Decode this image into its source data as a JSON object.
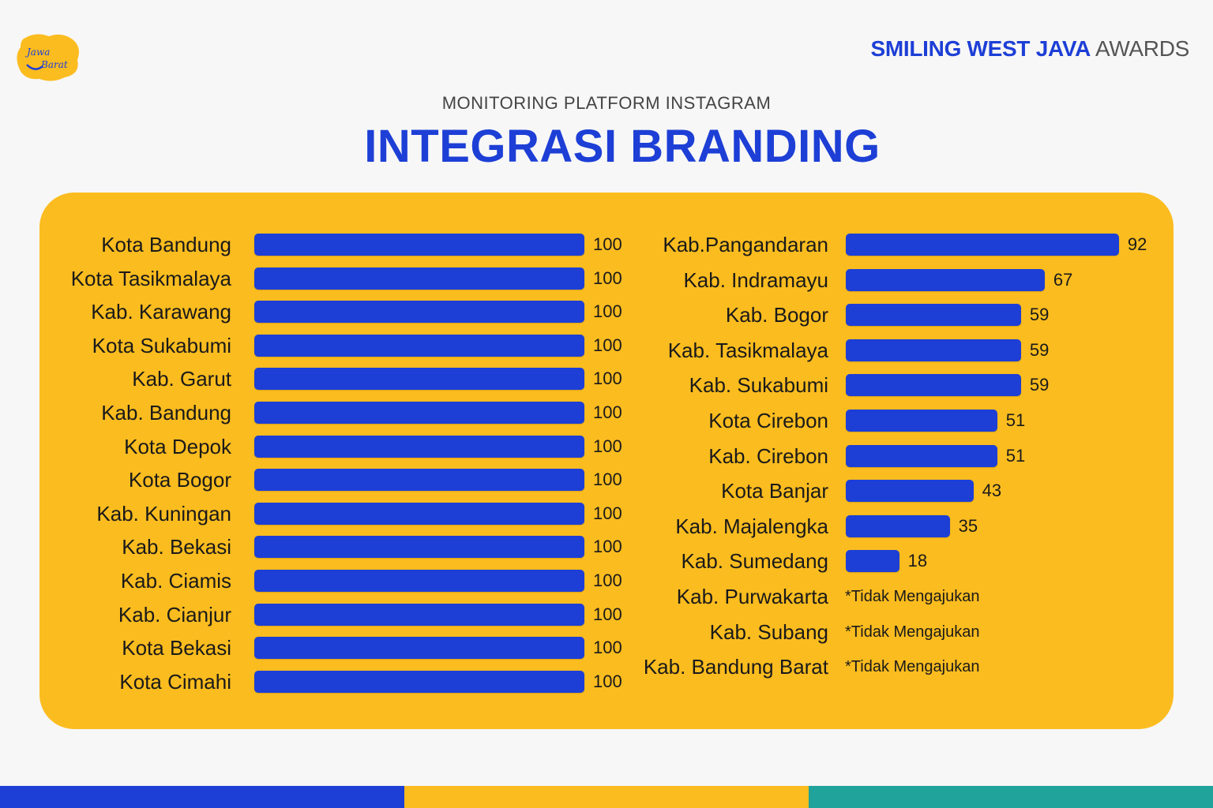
{
  "header": {
    "logo_text": "Jawa Barat",
    "brand_bold": "SMILING WEST JAVA",
    "brand_light": " AWARDS"
  },
  "subtitle": "MONITORING PLATFORM INSTAGRAM",
  "title": "INTEGRASI BRANDING",
  "colors": {
    "background": "#f7f7f7",
    "panel": "#fbbc1f",
    "bar": "#1d3fd6",
    "brand_blue": "#1d3fd6",
    "footer": [
      "#1d3fd6",
      "#fbbc1f",
      "#1fa39a"
    ]
  },
  "chart_data": [
    {
      "type": "bar",
      "orientation": "horizontal",
      "xlim": [
        0,
        100
      ],
      "grid": false,
      "categories": [
        "Kota Bandung",
        "Kota Tasikmalaya",
        "Kab. Karawang",
        "Kota Sukabumi",
        "Kab. Garut",
        "Kab. Bandung",
        "Kota Depok",
        "Kota Bogor",
        "Kab. Kuningan",
        "Kab. Bekasi",
        "Kab. Ciamis",
        "Kab. Cianjur",
        "Kota Bekasi",
        "Kota Cimahi"
      ],
      "values": [
        100,
        100,
        100,
        100,
        100,
        100,
        100,
        100,
        100,
        100,
        100,
        100,
        100,
        100
      ]
    },
    {
      "type": "bar",
      "orientation": "horizontal",
      "xlim": [
        0,
        100
      ],
      "grid": false,
      "categories": [
        "Kab.Pangandaran",
        "Kab. Indramayu",
        "Kab. Bogor",
        "Kab. Tasikmalaya",
        "Kab. Sukabumi",
        "Kota Cirebon",
        "Kab. Cirebon",
        "Kota Banjar",
        "Kab. Majalengka",
        "Kab. Sumedang",
        "Kab. Purwakarta",
        "Kab. Subang",
        "Kab. Bandung Barat"
      ],
      "values": [
        92,
        67,
        59,
        59,
        59,
        51,
        51,
        43,
        35,
        18,
        null,
        null,
        null
      ],
      "annotations": [
        "",
        "",
        "",
        "",
        "",
        "",
        "",
        "",
        "",
        "",
        "*Tidak Mengajukan",
        "*Tidak Mengajukan",
        "*Tidak Mengajukan"
      ]
    }
  ]
}
